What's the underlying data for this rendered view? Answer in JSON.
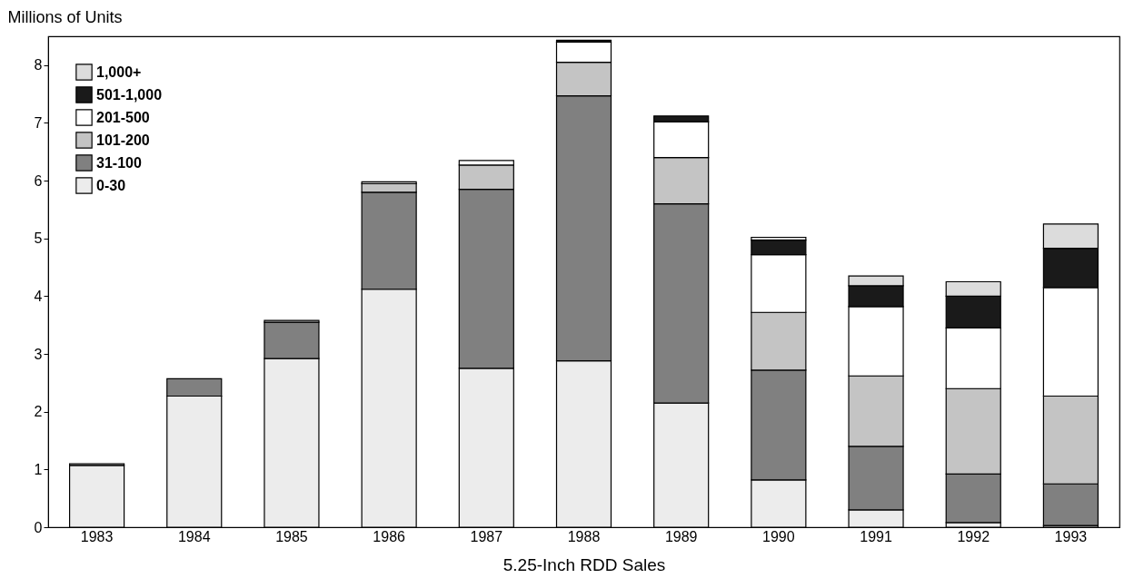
{
  "chart_data": {
    "type": "bar",
    "stacked": true,
    "ylabel": "Millions of Units",
    "xlabel": "5.25-Inch RDD Sales",
    "categories": [
      "1983",
      "1984",
      "1985",
      "1986",
      "1987",
      "1988",
      "1989",
      "1990",
      "1991",
      "1992",
      "1993"
    ],
    "series": [
      {
        "name": "0-30",
        "color": "#ececec",
        "values": [
          1.07,
          2.27,
          2.92,
          4.12,
          2.75,
          2.88,
          2.15,
          0.82,
          0.3,
          0.08,
          0.03
        ]
      },
      {
        "name": "31-100",
        "color": "#808080",
        "values": [
          0.03,
          0.3,
          0.63,
          1.68,
          3.1,
          4.59,
          3.45,
          1.9,
          1.1,
          0.84,
          0.72
        ]
      },
      {
        "name": "101-200",
        "color": "#c4c4c4",
        "values": [
          null,
          null,
          0.03,
          0.15,
          0.42,
          0.58,
          0.8,
          1.0,
          1.22,
          1.48,
          1.52
        ]
      },
      {
        "name": "201-500",
        "color": "#ffffff",
        "values": [
          null,
          null,
          null,
          0.03,
          0.08,
          0.35,
          0.62,
          1.0,
          1.2,
          1.05,
          1.88
        ]
      },
      {
        "name": "501-1,000",
        "color": "#1a1a1a",
        "values": [
          null,
          null,
          null,
          null,
          null,
          0.03,
          0.1,
          0.25,
          0.36,
          0.55,
          0.68
        ]
      },
      {
        "name": "1,000+",
        "color": "#dcdcdc",
        "values": [
          null,
          null,
          null,
          null,
          null,
          null,
          null,
          0.05,
          0.17,
          0.25,
          0.42
        ]
      }
    ],
    "ylim": [
      0,
      8.5
    ],
    "yticks": [
      0,
      1,
      2,
      3,
      4,
      5,
      6,
      7,
      8
    ],
    "grid": false,
    "legend": "top left"
  }
}
